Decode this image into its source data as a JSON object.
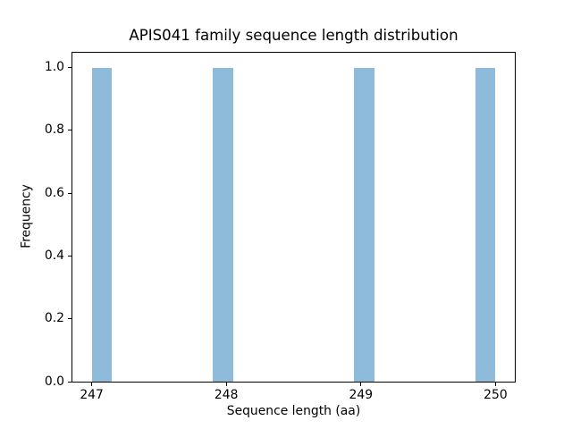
{
  "chart_data": {
    "type": "bar",
    "subtype": "histogram",
    "title": "APIS041 family sequence length distribution",
    "xlabel": "Sequence length (aa)",
    "ylabel": "Frequency",
    "xlim": [
      246.85,
      250.15
    ],
    "ylim": [
      0,
      1.05
    ],
    "grid": false,
    "legend": null,
    "bar_color": "#8FBBDA",
    "axis_color": "#000000",
    "background_color": "#ffffff",
    "x_ticks": [
      {
        "value": 247,
        "label": "247"
      },
      {
        "value": 248,
        "label": "248"
      },
      {
        "value": 249,
        "label": "249"
      },
      {
        "value": 250,
        "label": "250"
      }
    ],
    "y_ticks": [
      {
        "value": 0.0,
        "label": "0.0"
      },
      {
        "value": 0.2,
        "label": "0.2"
      },
      {
        "value": 0.4,
        "label": "0.4"
      },
      {
        "value": 0.6,
        "label": "0.6"
      },
      {
        "value": 0.8,
        "label": "0.8"
      },
      {
        "value": 1.0,
        "label": "1.0"
      }
    ],
    "bars": [
      {
        "x0": 247.0,
        "x1": 247.15,
        "height": 1.0
      },
      {
        "x0": 247.9,
        "x1": 248.05,
        "height": 1.0
      },
      {
        "x0": 248.95,
        "x1": 249.1,
        "height": 1.0
      },
      {
        "x0": 249.85,
        "x1": 250.0,
        "height": 1.0
      }
    ]
  }
}
